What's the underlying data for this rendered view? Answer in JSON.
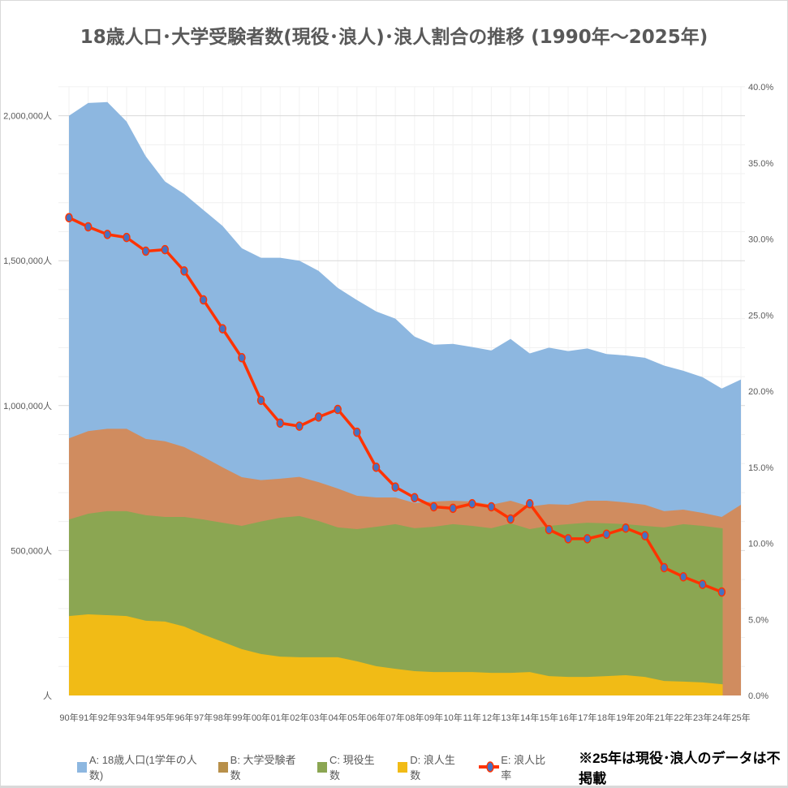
{
  "chart_data": {
    "type": "area+line",
    "title": "18歳人口･大学受験者数(現役･浪人)･浪人割合の推移  (1990年～2025年)",
    "categories": [
      "90年",
      "91年",
      "92年",
      "93年",
      "94年",
      "95年",
      "96年",
      "97年",
      "98年",
      "99年",
      "00年",
      "01年",
      "02年",
      "03年",
      "04年",
      "05年",
      "06年",
      "07年",
      "08年",
      "09年",
      "10年",
      "11年",
      "12年",
      "13年",
      "14年",
      "15年",
      "16年",
      "17年",
      "18年",
      "19年",
      "20年",
      "21年",
      "22年",
      "23年",
      "24年",
      "25年"
    ],
    "y_left": {
      "min": 0,
      "max": 2100000,
      "ticks": [
        0,
        500000,
        1000000,
        1500000,
        2000000
      ],
      "tick_labels": [
        "人",
        "500,000人",
        "1,000,000人",
        "1,500,000人",
        "2,000,000人"
      ]
    },
    "y_right": {
      "min": 0,
      "max": 40,
      "ticks": [
        0,
        5,
        10,
        15,
        20,
        25,
        30,
        35,
        40
      ],
      "tick_labels": [
        "0.0%",
        "5.0%",
        "10.0%",
        "15.0%",
        "20.0%",
        "25.0%",
        "30.0%",
        "35.0%",
        "40.0%"
      ]
    },
    "grid": true,
    "legend_position": "bottom",
    "series": [
      {
        "name": "A: 18歳人口(1学年の人数)",
        "type": "area",
        "axis": "left",
        "color": "#8db7e0",
        "values": [
          2000000,
          2044000,
          2047000,
          1980000,
          1860000,
          1773000,
          1730000,
          1675000,
          1620000,
          1543000,
          1510000,
          1510000,
          1500000,
          1465000,
          1406000,
          1364000,
          1325000,
          1300000,
          1238000,
          1210000,
          1213000,
          1202000,
          1190000,
          1230000,
          1180000,
          1200000,
          1188000,
          1197000,
          1178000,
          1173000,
          1165000,
          1138000,
          1120000,
          1098000,
          1059000,
          1090000
        ]
      },
      {
        "name": "B: 大学受験者数",
        "type": "area",
        "axis": "left",
        "color": "#d08c5f",
        "legend_color": "#b8904a",
        "values": [
          887000,
          912000,
          920000,
          920000,
          885000,
          877000,
          857000,
          823000,
          787000,
          753000,
          743000,
          748000,
          754000,
          736000,
          714000,
          689000,
          683000,
          683000,
          664000,
          669000,
          672000,
          669000,
          658000,
          672000,
          652000,
          660000,
          658000,
          672000,
          672000,
          666000,
          658000,
          636000,
          641000,
          630000,
          616000,
          658000
        ]
      },
      {
        "name": "C: 現役生数",
        "type": "area",
        "axis": "left",
        "color": "#8ba652",
        "values": [
          607000,
          627000,
          636000,
          636000,
          622000,
          616000,
          616000,
          607000,
          596000,
          585000,
          600000,
          613000,
          619000,
          602000,
          580000,
          574000,
          582000,
          591000,
          577000,
          582000,
          591000,
          585000,
          577000,
          594000,
          574000,
          585000,
          591000,
          596000,
          594000,
          591000,
          585000,
          580000,
          591000,
          585000,
          577000,
          null
        ]
      },
      {
        "name": "D: 浪人生数",
        "type": "area",
        "axis": "left",
        "color": "#f1bb16",
        "values": [
          274000,
          280000,
          277000,
          274000,
          258000,
          255000,
          238000,
          210000,
          185000,
          160000,
          143000,
          134000,
          132000,
          132000,
          132000,
          118000,
          101000,
          92000,
          84000,
          81000,
          81000,
          81000,
          78000,
          78000,
          81000,
          67000,
          64000,
          64000,
          67000,
          70000,
          64000,
          50000,
          48000,
          45000,
          39000,
          null
        ]
      },
      {
        "name": "E: 浪人比率",
        "type": "line",
        "axis": "right",
        "color": "#ff3300",
        "marker_color": "#4472c4",
        "values": [
          31.4,
          30.8,
          30.3,
          30.1,
          29.2,
          29.3,
          27.9,
          26.0,
          24.1,
          22.2,
          19.4,
          17.9,
          17.7,
          18.3,
          18.8,
          17.3,
          15.0,
          13.7,
          13.0,
          12.4,
          12.3,
          12.6,
          12.4,
          11.6,
          12.6,
          10.9,
          10.3,
          10.3,
          10.6,
          11.0,
          10.5,
          8.4,
          7.8,
          7.3,
          6.8,
          null
        ]
      }
    ],
    "note": "※25年は現役･浪人のデータは不掲載"
  }
}
